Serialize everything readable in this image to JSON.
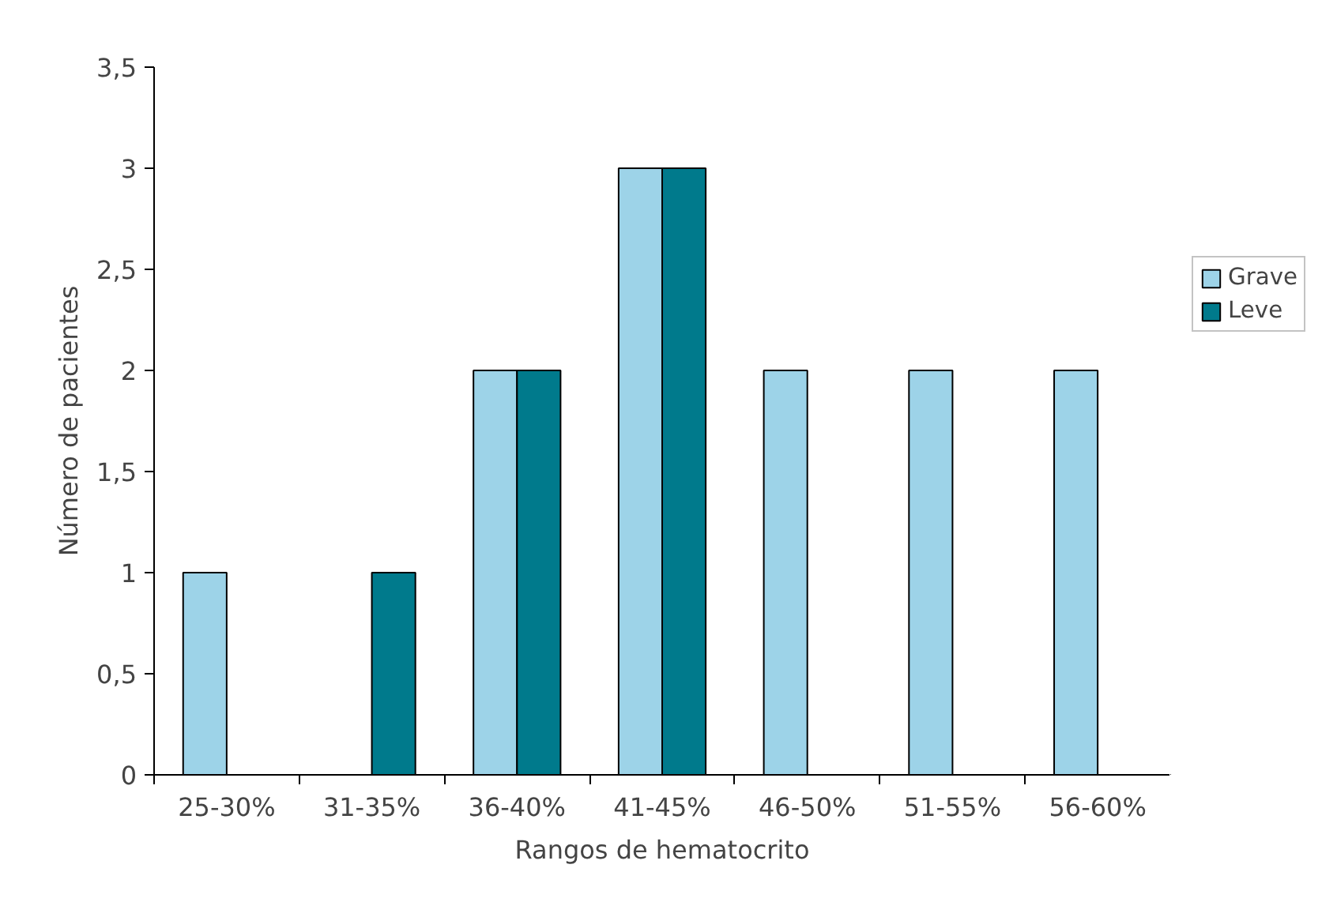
{
  "chart_data": {
    "type": "bar",
    "xlabel": "Rangos de hematocrito",
    "ylabel": "Número de pacientes",
    "categories": [
      "25-30%",
      "31-35%",
      "36-40%",
      "41-45%",
      "46-50%",
      "51-55%",
      "56-60%"
    ],
    "series": [
      {
        "name": "Grave",
        "color": "#9dd3e8",
        "values": [
          1,
          0,
          2,
          3,
          2,
          2,
          2
        ]
      },
      {
        "name": "Leve",
        "color": "#007a8c",
        "values": [
          0,
          1,
          2,
          3,
          0,
          0,
          0
        ]
      }
    ],
    "ylim": [
      0,
      3.5
    ],
    "yticks": [
      0,
      {
        "value": 0.5,
        "label": "0,5"
      },
      1,
      {
        "value": 1.5,
        "label": "1,5"
      },
      2,
      {
        "value": 2.5,
        "label": "2,5"
      },
      3,
      {
        "value": 3.5,
        "label": "3,5"
      }
    ],
    "grid": false,
    "legend": "right"
  }
}
